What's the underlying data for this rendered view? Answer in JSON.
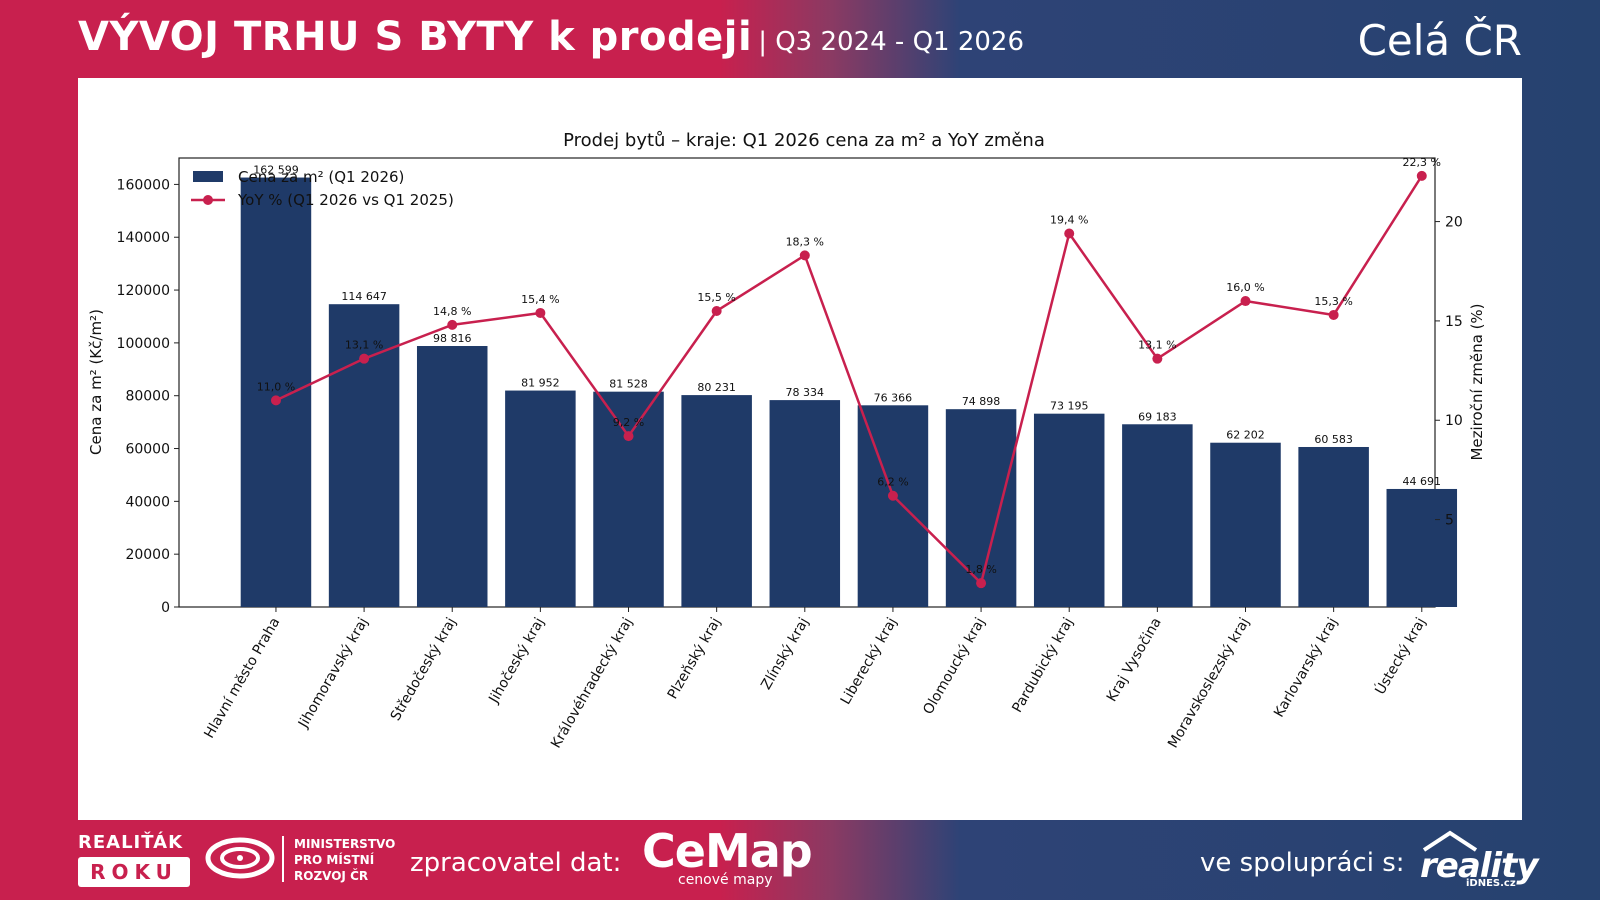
{
  "header": {
    "title": "VÝVOJ TRHU S BYTY k prodeji",
    "period": "| Q3 2024 - Q1 2026",
    "region": "Celá ČR"
  },
  "footer": {
    "award_line1": "REALIŤÁK",
    "award_line2": "ROKU",
    "ministry_line1": "MINISTERSTVO",
    "ministry_line2": "PRO MÍSTNÍ",
    "ministry_line3": "ROZVOJ ČR",
    "processor_label": "zpracovatel dat:",
    "cemap_logo": "CeMap",
    "cemap_sub": "cenové mapy",
    "collab_label": "ve spolupráci s:",
    "reality_logo": "reality",
    "reality_sub": "iDNES.cz"
  },
  "colors": {
    "bar": "#1f3a68",
    "line": "#c8204e",
    "brand_red": "#c8204e",
    "brand_blue": "#26426f"
  },
  "chart_data": {
    "type": "bar",
    "title": "Prodej bytů – kraje: Q1 2026 cena za m² a YoY změna",
    "ylabel": "Cena za m² (Kč/m²)",
    "y2label": "Meziroční změna (%)",
    "ylim": [
      0,
      170000
    ],
    "y2lim": [
      0.6,
      23.2
    ],
    "yticks": [
      "0",
      "20000",
      "40000",
      "60000",
      "80000",
      "100000",
      "120000",
      "140000",
      "160000"
    ],
    "y2ticks": [
      "5",
      "10",
      "15",
      "20"
    ],
    "legend_position": "top-left",
    "categories": [
      "Hlavní město Praha",
      "Jihomoravský kraj",
      "Středočeský kraj",
      "Jihočeský kraj",
      "Královéhradecký kraj",
      "Plzeňský kraj",
      "Zlínský kraj",
      "Liberecký kraj",
      "Olomoucký kraj",
      "Pardubický kraj",
      "Kraj Vysočina",
      "Moravskoslezský kraj",
      "Karlovarský kraj",
      "Ústecký kraj"
    ],
    "series": [
      {
        "name": "Cena za m² (Q1 2026)",
        "type": "bar",
        "values": [
          162599,
          114647,
          98816,
          81952,
          81528,
          80231,
          78334,
          76366,
          74898,
          73195,
          69183,
          62202,
          60583,
          44691
        ],
        "labels": [
          "162 599",
          "114 647",
          "98 816",
          "81 952",
          "81 528",
          "80 231",
          "78 334",
          "76 366",
          "74 898",
          "73 195",
          "69 183",
          "62 202",
          "60 583",
          "44 691"
        ]
      },
      {
        "name": "YoY % (Q1 2026 vs Q1 2025)",
        "type": "line",
        "axis": "right",
        "values": [
          11.0,
          13.1,
          14.8,
          15.4,
          9.2,
          15.5,
          18.3,
          6.2,
          1.8,
          19.4,
          13.1,
          16.0,
          15.3,
          22.3
        ],
        "labels": [
          "11,0 %",
          "13,1 %",
          "14,8 %",
          "15,4 %",
          "9,2 %",
          "15,5 %",
          "18,3 %",
          "6,2 %",
          "1,8 %",
          "19,4 %",
          "13,1 %",
          "16,0 %",
          "15,3 %",
          "22,3 %"
        ]
      }
    ]
  }
}
